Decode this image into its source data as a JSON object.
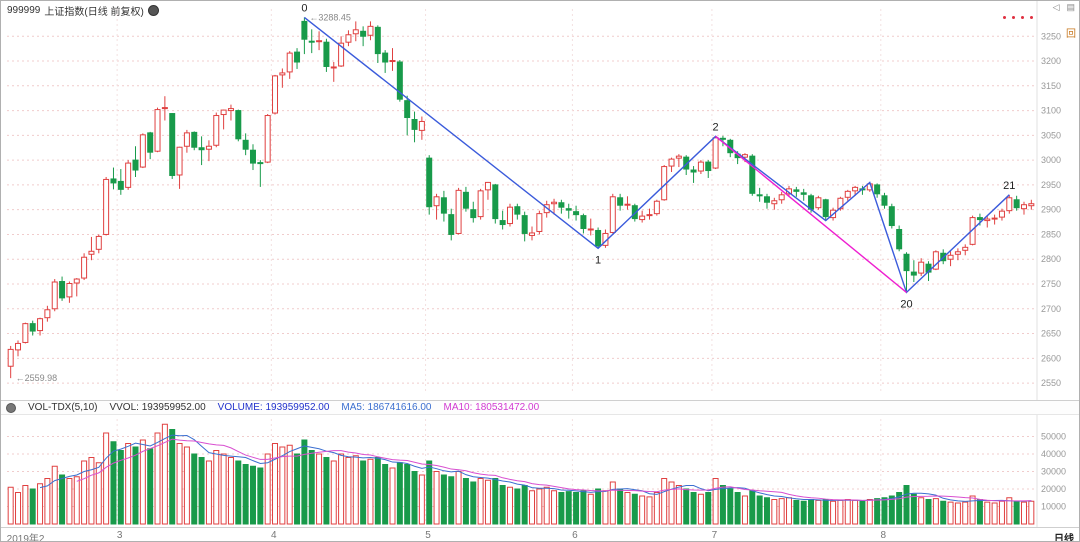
{
  "header": {
    "symbol": "999999",
    "name": "上证指数(日线 前复权)",
    "icons": {
      "collapse": "◁",
      "panel": "▤",
      "back": "回"
    }
  },
  "indicator_pane": {
    "name": "VOL-TDX(5,10)",
    "vvol": "VVOL: 193959952.00",
    "volume": "VOLUME: 193959952.00",
    "ma5": "MA5: 186741616.00",
    "ma10": "MA10: 180531472.00"
  },
  "footer": {
    "period_label": "日线"
  },
  "colors": {
    "up": "#e04040",
    "down": "#189a4a",
    "grid": "#f0cccc",
    "grid_v": "#f3e0e0",
    "axis_text": "#999999",
    "axis_line": "#e0e0e0",
    "ma5": "#3b6fd0",
    "ma10": "#d84fd0",
    "label_text": "#222222",
    "annotation_text": "#888888"
  },
  "chart_data": {
    "type": "candlestick",
    "title": "999999 上证指数(日线 前复权)",
    "xlabel": "",
    "ylabel": "",
    "price_range": [
      2530,
      3305
    ],
    "volume_range": [
      0,
      60000
    ],
    "y_ticks": [
      3250,
      3200,
      3150,
      3100,
      3050,
      3000,
      2950,
      2900,
      2850,
      2800,
      2750,
      2700,
      2650,
      2600,
      2550
    ],
    "vol_ticks": [
      50000,
      40000,
      30000,
      20000,
      10000
    ],
    "x_labels": [
      {
        "text": "2019年2",
        "day": 0
      },
      {
        "text": "3",
        "day": 15
      },
      {
        "text": "4",
        "day": 36
      },
      {
        "text": "5",
        "day": 57
      },
      {
        "text": "6",
        "day": 77
      },
      {
        "text": "7",
        "day": 96
      },
      {
        "text": "8",
        "day": 119
      }
    ],
    "month_start_indices": [
      15,
      36,
      57,
      77,
      96,
      119
    ],
    "candles": [
      [
        2584,
        2625,
        2560,
        2618,
        21000
      ],
      [
        2617,
        2636,
        2604,
        2630,
        18000
      ],
      [
        2632,
        2672,
        2630,
        2670,
        22000
      ],
      [
        2670,
        2676,
        2646,
        2655,
        20000
      ],
      [
        2656,
        2682,
        2646,
        2680,
        23000
      ],
      [
        2682,
        2706,
        2674,
        2698,
        26000
      ],
      [
        2700,
        2760,
        2695,
        2754,
        33000
      ],
      [
        2755,
        2765,
        2716,
        2722,
        28000
      ],
      [
        2724,
        2755,
        2712,
        2751,
        26000
      ],
      [
        2752,
        2762,
        2725,
        2760,
        27000
      ],
      [
        2762,
        2812,
        2758,
        2804,
        36000
      ],
      [
        2810,
        2845,
        2798,
        2816,
        38000
      ],
      [
        2820,
        2850,
        2812,
        2846,
        35000
      ],
      [
        2850,
        2966,
        2848,
        2961,
        52000
      ],
      [
        2962,
        2985,
        2941,
        2954,
        47000
      ],
      [
        2957,
        2982,
        2930,
        2941,
        42000
      ],
      [
        2945,
        3000,
        2940,
        2994,
        46000
      ],
      [
        3000,
        3028,
        2966,
        2980,
        44000
      ],
      [
        2986,
        3054,
        2984,
        3051,
        48000
      ],
      [
        3055,
        3057,
        3002,
        3016,
        43000
      ],
      [
        3018,
        3106,
        3016,
        3102,
        52000
      ],
      [
        3104,
        3129,
        3080,
        3106,
        57000
      ],
      [
        3094,
        3095,
        2962,
        2969,
        54000
      ],
      [
        2970,
        3027,
        2942,
        3026,
        46000
      ],
      [
        3028,
        3061,
        3015,
        3055,
        44000
      ],
      [
        3056,
        3058,
        3020,
        3026,
        40000
      ],
      [
        3025,
        3048,
        2990,
        3021,
        38000
      ],
      [
        3022,
        3040,
        2998,
        3028,
        36000
      ],
      [
        3030,
        3096,
        3026,
        3090,
        42000
      ],
      [
        3092,
        3102,
        3062,
        3101,
        40000
      ],
      [
        3100,
        3112,
        3080,
        3104,
        38000
      ],
      [
        3100,
        3102,
        3038,
        3043,
        36000
      ],
      [
        3040,
        3054,
        3010,
        3022,
        34000
      ],
      [
        3020,
        3032,
        2980,
        2994,
        33000
      ],
      [
        2995,
        3000,
        2946,
        2994,
        32000
      ],
      [
        2996,
        3093,
        2994,
        3090,
        40000
      ],
      [
        3095,
        3172,
        3092,
        3170,
        46000
      ],
      [
        3172,
        3185,
        3146,
        3176,
        44000
      ],
      [
        3178,
        3220,
        3164,
        3216,
        45000
      ],
      [
        3218,
        3226,
        3184,
        3198,
        40000
      ],
      [
        3280,
        3288,
        3214,
        3244,
        48000
      ],
      [
        3240,
        3264,
        3216,
        3239,
        42000
      ],
      [
        3241,
        3260,
        3222,
        3241,
        40000
      ],
      [
        3238,
        3245,
        3178,
        3189,
        38000
      ],
      [
        3186,
        3198,
        3158,
        3188,
        36000
      ],
      [
        3190,
        3250,
        3188,
        3236,
        40000
      ],
      [
        3238,
        3262,
        3230,
        3253,
        38000
      ],
      [
        3255,
        3280,
        3240,
        3263,
        39000
      ],
      [
        3260,
        3270,
        3230,
        3250,
        36000
      ],
      [
        3252,
        3280,
        3242,
        3270,
        37000
      ],
      [
        3268,
        3272,
        3196,
        3215,
        38000
      ],
      [
        3216,
        3222,
        3176,
        3198,
        34000
      ],
      [
        3200,
        3226,
        3180,
        3201,
        32000
      ],
      [
        3198,
        3202,
        3118,
        3123,
        35000
      ],
      [
        3120,
        3130,
        3050,
        3086,
        34000
      ],
      [
        3082,
        3098,
        3036,
        3062,
        30000
      ],
      [
        3060,
        3088,
        3041,
        3078,
        28000
      ],
      [
        3004,
        3010,
        2890,
        2906,
        36000
      ],
      [
        2908,
        2932,
        2880,
        2926,
        30000
      ],
      [
        2924,
        2938,
        2876,
        2893,
        28000
      ],
      [
        2890,
        2902,
        2838,
        2850,
        27000
      ],
      [
        2852,
        2944,
        2850,
        2939,
        30000
      ],
      [
        2935,
        2946,
        2896,
        2903,
        26000
      ],
      [
        2900,
        2916,
        2874,
        2884,
        24000
      ],
      [
        2886,
        2942,
        2880,
        2938,
        26000
      ],
      [
        2940,
        2956,
        2920,
        2955,
        25000
      ],
      [
        2950,
        2952,
        2872,
        2882,
        26000
      ],
      [
        2878,
        2898,
        2860,
        2870,
        22000
      ],
      [
        2872,
        2912,
        2866,
        2905,
        21000
      ],
      [
        2906,
        2912,
        2880,
        2891,
        20000
      ],
      [
        2888,
        2896,
        2836,
        2852,
        22000
      ],
      [
        2848,
        2866,
        2838,
        2853,
        19000
      ],
      [
        2856,
        2898,
        2850,
        2892,
        20000
      ],
      [
        2894,
        2918,
        2884,
        2910,
        21000
      ],
      [
        2912,
        2922,
        2890,
        2915,
        19000
      ],
      [
        2914,
        2920,
        2892,
        2905,
        18000
      ],
      [
        2902,
        2912,
        2882,
        2899,
        18500
      ],
      [
        2896,
        2908,
        2878,
        2890,
        18000
      ],
      [
        2888,
        2892,
        2852,
        2862,
        19000
      ],
      [
        2860,
        2882,
        2848,
        2861,
        17000
      ],
      [
        2858,
        2864,
        2822,
        2827,
        20000
      ],
      [
        2828,
        2860,
        2823,
        2852,
        19000
      ],
      [
        2854,
        2932,
        2852,
        2926,
        24000
      ],
      [
        2924,
        2932,
        2898,
        2909,
        20000
      ],
      [
        2910,
        2927,
        2900,
        2911,
        18000
      ],
      [
        2908,
        2912,
        2876,
        2882,
        17000
      ],
      [
        2880,
        2898,
        2874,
        2887,
        16000
      ],
      [
        2888,
        2902,
        2880,
        2890,
        15500
      ],
      [
        2892,
        2920,
        2888,
        2917,
        18000
      ],
      [
        2920,
        2990,
        2918,
        2987,
        26000
      ],
      [
        2988,
        3005,
        2976,
        3002,
        24000
      ],
      [
        3004,
        3012,
        2986,
        3008,
        22000
      ],
      [
        3006,
        3010,
        2970,
        2982,
        20000
      ],
      [
        2980,
        2988,
        2954,
        2976,
        18000
      ],
      [
        2978,
        3000,
        2972,
        2996,
        17000
      ],
      [
        2996,
        3000,
        2964,
        2979,
        18000
      ],
      [
        2984,
        3048,
        2982,
        3045,
        26000
      ],
      [
        3044,
        3049,
        3028,
        3043,
        22000
      ],
      [
        3040,
        3043,
        3006,
        3015,
        20000
      ],
      [
        3012,
        3018,
        2992,
        3005,
        18000
      ],
      [
        3006,
        3014,
        2996,
        3011,
        16000
      ],
      [
        3008,
        3012,
        2928,
        2933,
        19000
      ],
      [
        2930,
        2944,
        2916,
        2928,
        16000
      ],
      [
        2926,
        2932,
        2902,
        2915,
        15000
      ],
      [
        2912,
        2924,
        2900,
        2918,
        14000
      ],
      [
        2920,
        2936,
        2912,
        2930,
        14500
      ],
      [
        2932,
        2948,
        2926,
        2942,
        15000
      ],
      [
        2940,
        2946,
        2926,
        2937,
        13500
      ],
      [
        2934,
        2942,
        2918,
        2931,
        13000
      ],
      [
        2928,
        2932,
        2894,
        2901,
        14000
      ],
      [
        2904,
        2928,
        2900,
        2924,
        13500
      ],
      [
        2920,
        2922,
        2878,
        2886,
        14000
      ],
      [
        2884,
        2904,
        2878,
        2899,
        13000
      ],
      [
        2902,
        2926,
        2898,
        2923,
        13500
      ],
      [
        2925,
        2940,
        2918,
        2937,
        14000
      ],
      [
        2938,
        2948,
        2928,
        2945,
        13500
      ],
      [
        2942,
        2948,
        2930,
        2941,
        13000
      ],
      [
        2940,
        2955,
        2936,
        2952,
        14000
      ],
      [
        2950,
        2953,
        2924,
        2932,
        14500
      ],
      [
        2928,
        2934,
        2902,
        2909,
        15000
      ],
      [
        2906,
        2912,
        2862,
        2868,
        16000
      ],
      [
        2860,
        2868,
        2816,
        2821,
        18000
      ],
      [
        2810,
        2814,
        2733,
        2777,
        22000
      ],
      [
        2774,
        2798,
        2754,
        2768,
        17000
      ],
      [
        2772,
        2802,
        2766,
        2794,
        15000
      ],
      [
        2790,
        2796,
        2756,
        2774,
        14000
      ],
      [
        2780,
        2818,
        2778,
        2815,
        14500
      ],
      [
        2812,
        2820,
        2790,
        2797,
        13000
      ],
      [
        2800,
        2816,
        2786,
        2808,
        12500
      ],
      [
        2810,
        2822,
        2798,
        2815,
        12000
      ],
      [
        2818,
        2830,
        2808,
        2824,
        12500
      ],
      [
        2830,
        2888,
        2828,
        2884,
        16000
      ],
      [
        2884,
        2892,
        2868,
        2880,
        14000
      ],
      [
        2878,
        2888,
        2864,
        2881,
        12500
      ],
      [
        2882,
        2890,
        2870,
        2883,
        12000
      ],
      [
        2885,
        2902,
        2878,
        2897,
        13000
      ],
      [
        2898,
        2930,
        2892,
        2924,
        15000
      ],
      [
        2920,
        2928,
        2898,
        2904,
        13000
      ],
      [
        2902,
        2916,
        2890,
        2910,
        12500
      ],
      [
        2908,
        2920,
        2900,
        2912,
        13000
      ]
    ],
    "overlays": {
      "zigzag_blue": {
        "color": "#3b5bdb",
        "points": [
          [
            40,
            3288
          ],
          [
            80,
            2822
          ],
          [
            96,
            3048
          ],
          [
            111,
            2878
          ],
          [
            117,
            2955
          ],
          [
            122,
            2733
          ],
          [
            136,
            2930
          ]
        ]
      },
      "line_magenta": {
        "color": "#ee1fd0",
        "points": [
          [
            96,
            3048
          ],
          [
            122,
            2733
          ]
        ]
      },
      "point_labels": [
        {
          "text": "0",
          "day": 40,
          "price": 3288,
          "pos": "above"
        },
        {
          "text": "1",
          "day": 80,
          "price": 2822,
          "pos": "below"
        },
        {
          "text": "2",
          "day": 96,
          "price": 3048,
          "pos": "above"
        },
        {
          "text": "20",
          "day": 122,
          "price": 2733,
          "pos": "below"
        },
        {
          "text": "21",
          "day": 136,
          "price": 2930,
          "pos": "above"
        }
      ]
    },
    "annotations": [
      {
        "text": "←3288.45",
        "day": 40,
        "price": 3288
      },
      {
        "text": "←2559.98",
        "day": 0,
        "price": 2560
      }
    ],
    "volume_ma_periods": [
      5,
      10
    ],
    "legend_position": "top-left",
    "grid": true
  }
}
